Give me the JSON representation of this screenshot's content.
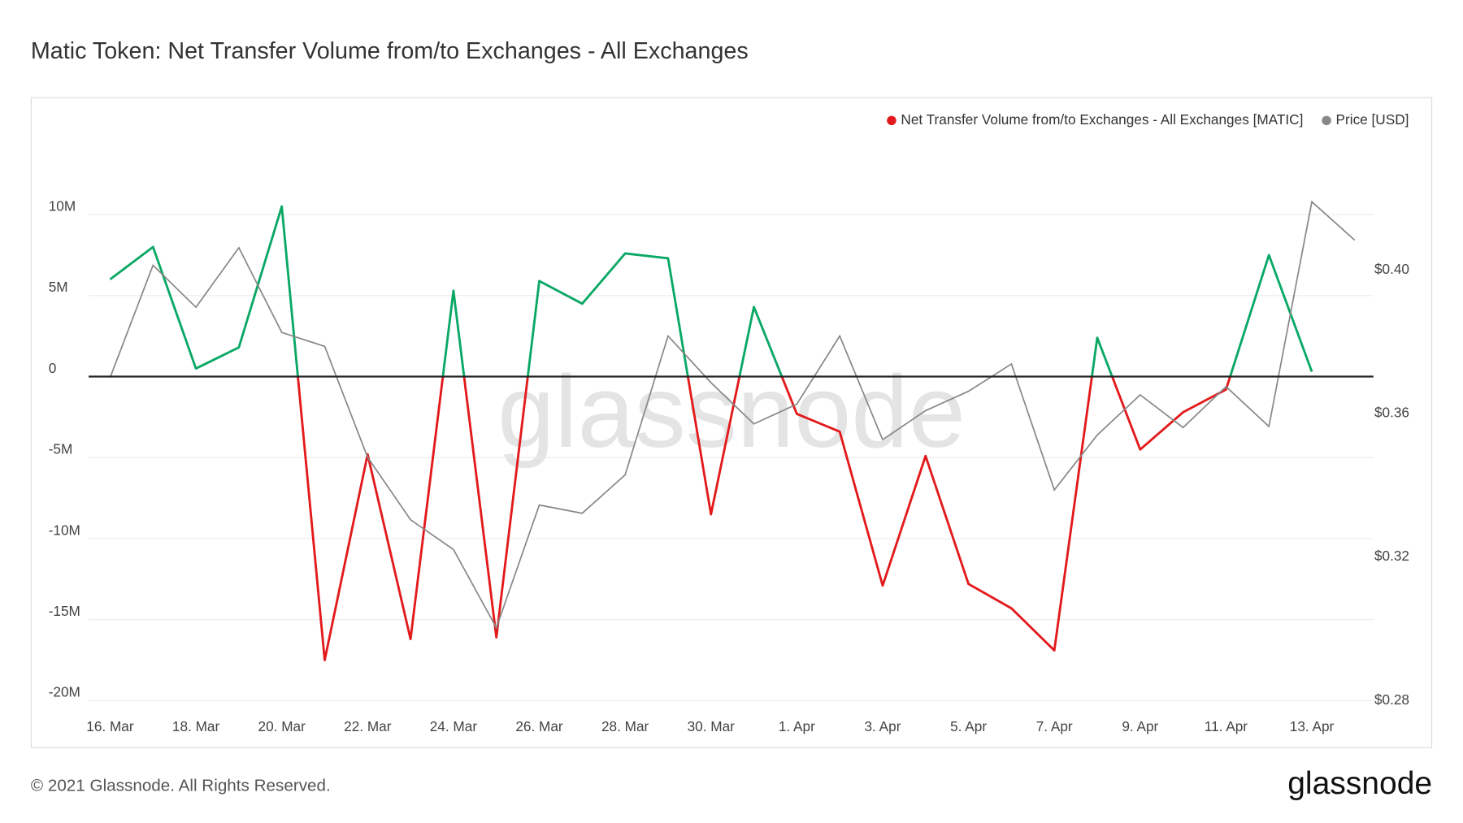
{
  "chart_data": {
    "type": "line",
    "title": "Matic Token: Net Transfer Volume from/to Exchanges - All Exchanges",
    "watermark": "glassnode",
    "footer": "© 2021 Glassnode. All Rights Reserved.",
    "logo": "glassnode",
    "categories": [
      "16. Mar",
      null,
      "18. Mar",
      null,
      "20. Mar",
      null,
      "22. Mar",
      null,
      "24. Mar",
      null,
      "26. Mar",
      null,
      "28. Mar",
      null,
      "30. Mar",
      null,
      "1. Apr",
      null,
      "3. Apr",
      null,
      "5. Apr",
      null,
      "7. Apr",
      null,
      "9. Apr",
      null,
      "11. Apr",
      null,
      "13. Apr",
      null
    ],
    "series": [
      {
        "name": "Net Transfer Volume from/to Exchanges - All Exchanges [MATIC]",
        "color": "#e31a1c",
        "positive_color": "#0aa865",
        "values": [
          6000000,
          8000000,
          500000,
          1800000,
          10500000,
          -17500000,
          -4800000,
          -16200000,
          5300000,
          -16100000,
          5900000,
          4500000,
          7600000,
          7300000,
          -8500000,
          4300000,
          -2300000,
          -3400000,
          -12900000,
          -4900000,
          -12800000,
          -14300000,
          -16900000,
          2400000,
          -4500000,
          -2200000,
          -800000,
          7500000,
          300000,
          null
        ]
      },
      {
        "name": "Price [USD]",
        "color": "#888888",
        "axis": "y2",
        "values": [
          0.37,
          0.4013,
          0.3896,
          0.4062,
          0.3826,
          0.3787,
          0.3478,
          0.3304,
          0.3221,
          0.3003,
          0.3345,
          0.3322,
          0.3429,
          0.3816,
          0.3686,
          0.3571,
          0.3626,
          0.3816,
          0.3527,
          0.3608,
          0.3662,
          0.3738,
          0.3387,
          0.354,
          0.3652,
          0.3561,
          0.3675,
          0.3564,
          0.419,
          0.4083
        ]
      }
    ],
    "ylim": [
      -20000000,
      15000000
    ],
    "yticks": [
      {
        "value": -20000000,
        "label": "-20M"
      },
      {
        "value": -15000000,
        "label": "-15M"
      },
      {
        "value": -10000000,
        "label": "-10M"
      },
      {
        "value": -5000000,
        "label": "-5M"
      },
      0,
      {
        "value": 5000000,
        "label": "5M"
      },
      {
        "value": 10000000,
        "label": "10M"
      }
    ],
    "y2lim": [
      0.28,
      0.438
    ],
    "y2ticks": [
      {
        "value": 0.28,
        "label": "$0.28"
      },
      {
        "value": 0.32,
        "label": "$0.32"
      },
      {
        "value": 0.36,
        "label": "$0.36"
      },
      {
        "value": 0.4,
        "label": "$0.40"
      }
    ],
    "grid": true,
    "legend": "top-right"
  }
}
